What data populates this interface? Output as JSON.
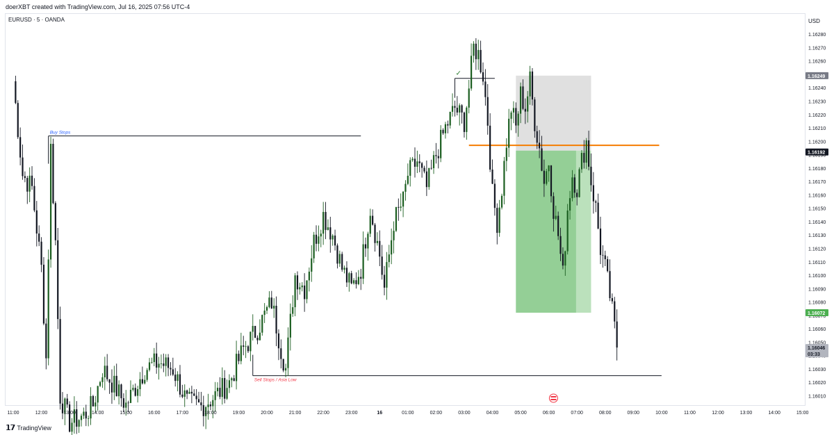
{
  "header": {
    "caption": "doerXBT created with TradingView.com, Jul 16, 2025 07:56 UTC-4"
  },
  "footer": {
    "brand": "TradingView"
  },
  "colors": {
    "up": "#1b5e20",
    "down": "#131722",
    "sell_zone": "#4caf50",
    "stop_zone": "#9e9e9e",
    "entry_line": "#f57c00",
    "buy_stops_label": "#2962ff",
    "sell_stops_label": "#f23645"
  },
  "chart_data": {
    "type": "candlestick",
    "title": "EURUSD · 5 · OANDA",
    "currency": "USD",
    "ylim": [
      1.16003,
      1.16292
    ],
    "y_ticks": [
      "1.16280",
      "1.16270",
      "1.16260",
      "1.16250",
      "1.16240",
      "1.16230",
      "1.16220",
      "1.16210",
      "1.16200",
      "1.16190",
      "1.16180",
      "1.16170",
      "1.16160",
      "1.16150",
      "1.16140",
      "1.16130",
      "1.16120",
      "1.16110",
      "1.16100",
      "1.16090",
      "1.16080",
      "1.16070",
      "1.16060",
      "1.16050",
      "1.16040",
      "1.16030",
      "1.16020",
      "1.16010"
    ],
    "x_ticks": [
      "11:00",
      "12:00",
      "13:00",
      "14:00",
      "15:00",
      "16:00",
      "17:00",
      "18:00",
      "19:00",
      "20:00",
      "21:00",
      "22:00",
      "23:00",
      "16",
      "01:00",
      "02:00",
      "03:00",
      "04:00",
      "05:00",
      "06:00",
      "07:00",
      "08:00",
      "09:00",
      "10:00",
      "11:00",
      "12:00",
      "13:00",
      "14:00",
      "15:00"
    ],
    "x_tick_index": [
      0,
      12,
      24,
      36,
      48,
      60,
      72,
      84,
      96,
      108,
      120,
      132,
      144,
      156,
      168,
      180,
      192,
      204,
      216,
      228,
      240,
      252,
      264,
      276,
      288,
      300,
      312,
      324,
      336
    ],
    "key_points": [
      {
        "i": 0,
        "price": 1.16245
      },
      {
        "i": 4,
        "price": 1.16175
      },
      {
        "i": 8,
        "price": 1.16165
      },
      {
        "i": 12,
        "price": 1.16105
      },
      {
        "i": 14,
        "price": 1.16038
      },
      {
        "i": 16,
        "price": 1.16195
      },
      {
        "i": 18,
        "price": 1.16125
      },
      {
        "i": 20,
        "price": 1.1601
      },
      {
        "i": 24,
        "price": 1.1599
      },
      {
        "i": 30,
        "price": 1.15995
      },
      {
        "i": 34,
        "price": 1.16003
      },
      {
        "i": 38,
        "price": 1.1603
      },
      {
        "i": 42,
        "price": 1.1602
      },
      {
        "i": 48,
        "price": 1.16003
      },
      {
        "i": 56,
        "price": 1.1603
      },
      {
        "i": 62,
        "price": 1.16035
      },
      {
        "i": 68,
        "price": 1.1603
      },
      {
        "i": 74,
        "price": 1.16005
      },
      {
        "i": 80,
        "price": 1.16002
      },
      {
        "i": 86,
        "price": 1.1601
      },
      {
        "i": 92,
        "price": 1.1602
      },
      {
        "i": 98,
        "price": 1.16045
      },
      {
        "i": 104,
        "price": 1.1606
      },
      {
        "i": 110,
        "price": 1.1608
      },
      {
        "i": 114,
        "price": 1.16045
      },
      {
        "i": 116,
        "price": 1.1603
      },
      {
        "i": 120,
        "price": 1.161
      },
      {
        "i": 124,
        "price": 1.1609
      },
      {
        "i": 128,
        "price": 1.16125
      },
      {
        "i": 132,
        "price": 1.16145
      },
      {
        "i": 136,
        "price": 1.1613
      },
      {
        "i": 140,
        "price": 1.16105
      },
      {
        "i": 144,
        "price": 1.1609
      },
      {
        "i": 148,
        "price": 1.16105
      },
      {
        "i": 152,
        "price": 1.1615
      },
      {
        "i": 156,
        "price": 1.16115
      },
      {
        "i": 158,
        "price": 1.1609
      },
      {
        "i": 162,
        "price": 1.1614
      },
      {
        "i": 166,
        "price": 1.16155
      },
      {
        "i": 168,
        "price": 1.16175
      },
      {
        "i": 172,
        "price": 1.16185
      },
      {
        "i": 176,
        "price": 1.16165
      },
      {
        "i": 180,
        "price": 1.1619
      },
      {
        "i": 184,
        "price": 1.1621
      },
      {
        "i": 188,
        "price": 1.16225
      },
      {
        "i": 192,
        "price": 1.16215
      },
      {
        "i": 194,
        "price": 1.1624
      },
      {
        "i": 196,
        "price": 1.1627
      },
      {
        "i": 198,
        "price": 1.16265
      },
      {
        "i": 200,
        "price": 1.1625
      },
      {
        "i": 202,
        "price": 1.16215
      },
      {
        "i": 204,
        "price": 1.1616
      },
      {
        "i": 206,
        "price": 1.1614
      },
      {
        "i": 208,
        "price": 1.16165
      },
      {
        "i": 210,
        "price": 1.162
      },
      {
        "i": 212,
        "price": 1.16225
      },
      {
        "i": 214,
        "price": 1.1621
      },
      {
        "i": 216,
        "price": 1.16235
      },
      {
        "i": 218,
        "price": 1.16225
      },
      {
        "i": 220,
        "price": 1.16245
      },
      {
        "i": 222,
        "price": 1.16215
      },
      {
        "i": 224,
        "price": 1.16195
      },
      {
        "i": 226,
        "price": 1.1617
      },
      {
        "i": 228,
        "price": 1.16185
      },
      {
        "i": 230,
        "price": 1.1615
      },
      {
        "i": 232,
        "price": 1.1613
      },
      {
        "i": 234,
        "price": 1.161
      },
      {
        "i": 236,
        "price": 1.1615
      },
      {
        "i": 238,
        "price": 1.16175
      },
      {
        "i": 240,
        "price": 1.16165
      },
      {
        "i": 242,
        "price": 1.16185
      },
      {
        "i": 244,
        "price": 1.162
      },
      {
        "i": 246,
        "price": 1.1617
      },
      {
        "i": 248,
        "price": 1.1615
      },
      {
        "i": 250,
        "price": 1.1612
      },
      {
        "i": 252,
        "price": 1.16105
      },
      {
        "i": 254,
        "price": 1.16085
      },
      {
        "i": 256,
        "price": 1.1606
      },
      {
        "i": 257,
        "price": 1.16046
      }
    ],
    "y_ranges": [
      {
        "label": "Buy Stops",
        "price": 1.16204,
        "i_start": 15,
        "i_end": 148
      },
      {
        "label": "Sell Stops / Asia Low",
        "price": 1.16025,
        "i_start": 102,
        "i_end": 276
      }
    ],
    "levels": [
      {
        "name": "high-marker",
        "price": 1.16247,
        "i_start": 188,
        "i_end": 205
      },
      {
        "name": "entry",
        "price": 1.16197,
        "i_start": 194,
        "i_end": 275
      }
    ],
    "position": {
      "type": "short",
      "entry": 1.16193,
      "stop": 1.16249,
      "target": 1.16072,
      "i_start": 214,
      "i_end": 246
    },
    "annotations": [
      {
        "text": "Buy Stops"
      },
      {
        "text": "Sell Stops / Asia Low"
      },
      {
        "text": "✓"
      }
    ],
    "price_tags": [
      {
        "value": "1.16249",
        "kind": "stop"
      },
      {
        "value": "1.16192",
        "kind": "last-entry"
      },
      {
        "value": "1.16072",
        "kind": "target"
      },
      {
        "value": "1.16046",
        "kind": "current"
      },
      {
        "value": "03:33",
        "kind": "countdown"
      }
    ],
    "grid": false,
    "legend": "none"
  }
}
